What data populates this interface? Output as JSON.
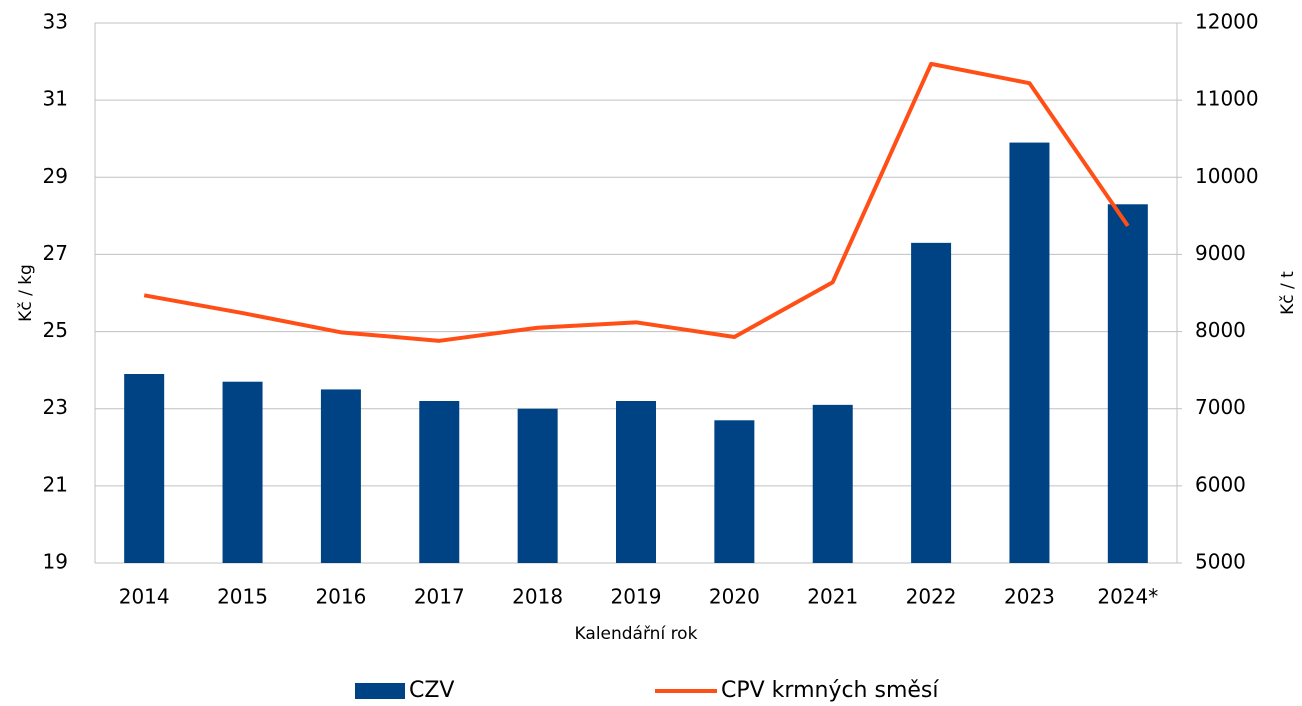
{
  "chart_data": {
    "type": "bar-line",
    "categories": [
      "2014",
      "2015",
      "2016",
      "2017",
      "2018",
      "2019",
      "2020",
      "2021",
      "2022",
      "2023",
      "2024*"
    ],
    "series": [
      {
        "name": "CZV",
        "type": "bar",
        "color": "#004385",
        "values": [
          23.9,
          23.7,
          23.5,
          23.2,
          23.0,
          23.2,
          22.7,
          23.1,
          27.3,
          29.9,
          28.3
        ]
      },
      {
        "name": "CPV krmných směsí",
        "type": "line",
        "axis": "y2",
        "color": "#ff4f17",
        "values": [
          8470,
          8240,
          7990,
          7880,
          8050,
          8120,
          7930,
          8640,
          11470,
          11220,
          9370
        ]
      }
    ],
    "ylabel": "Kč / kg",
    "y2label": "Kč / t",
    "xlabel": "Kalendářní rok",
    "ylim": [
      19,
      33
    ],
    "yticks": [
      19,
      21,
      23,
      25,
      27,
      29,
      31,
      33
    ],
    "y2lim": [
      5000,
      12000
    ],
    "y2ticks": [
      5000,
      6000,
      7000,
      8000,
      9000,
      10000,
      11000,
      12000
    ],
    "grid": true,
    "legend": "bottom"
  }
}
